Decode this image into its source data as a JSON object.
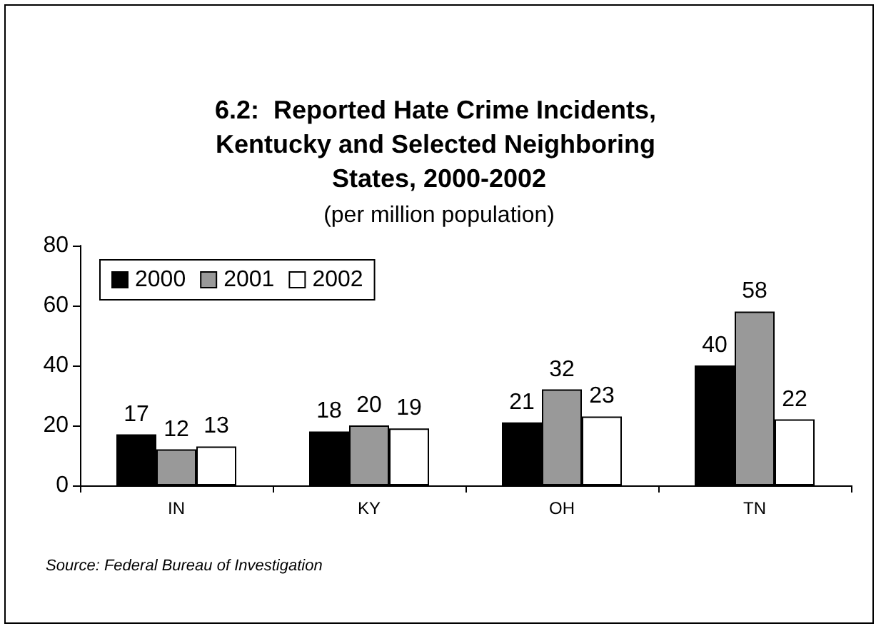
{
  "chart_data": {
    "type": "bar",
    "title": "6.2:  Reported Hate Crime Incidents, Kentucky and Selected Neighboring States, 2000-2002",
    "subtitle": "(per million population)",
    "categories": [
      "IN",
      "KY",
      "OH",
      "TN"
    ],
    "series": [
      {
        "name": "2000",
        "color": "#000000",
        "values": [
          17,
          18,
          21,
          40
        ]
      },
      {
        "name": "2001",
        "color": "#999999",
        "values": [
          12,
          20,
          32,
          58
        ]
      },
      {
        "name": "2002",
        "color": "#ffffff",
        "values": [
          13,
          19,
          23,
          22
        ]
      }
    ],
    "ylim": [
      0,
      80
    ],
    "yticks": [
      0,
      20,
      40,
      60,
      80
    ],
    "grid": false,
    "legend": "top left",
    "data_labels": true,
    "annotations": [
      "Source: Federal Bureau of Investigation"
    ]
  }
}
